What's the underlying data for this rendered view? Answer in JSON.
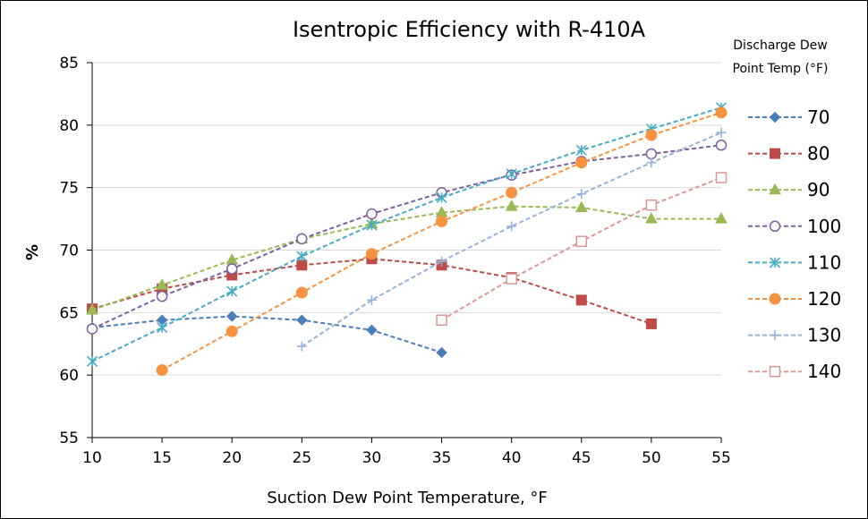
{
  "chart_data": {
    "type": "line",
    "title": "Isentropic Efficiency with R-410A",
    "xlabel": "Suction Dew Point Temperature, °F",
    "ylabel": "%",
    "xlim": [
      10,
      55
    ],
    "ylim": [
      55,
      85
    ],
    "xticks": [
      10,
      15,
      20,
      25,
      30,
      35,
      40,
      45,
      50,
      55
    ],
    "yticks": [
      55,
      60,
      65,
      70,
      75,
      80,
      85
    ],
    "grid": "horizontal",
    "legend_title": "Discharge Dew Point Temp (°F)",
    "legend_title_lines": [
      "Discharge Dew",
      "Point Temp (°F)"
    ],
    "legend_position": "right",
    "series": [
      {
        "name": "70",
        "color": "#4a7ebb",
        "marker": "diamond",
        "x": [
          10,
          15,
          20,
          25,
          30,
          35
        ],
        "y": [
          63.8,
          64.4,
          64.7,
          64.4,
          63.6,
          61.8
        ]
      },
      {
        "name": "80",
        "color": "#be4b48",
        "marker": "square",
        "x": [
          10,
          15,
          20,
          25,
          30,
          35,
          40,
          45,
          50
        ],
        "y": [
          65.3,
          66.9,
          68.0,
          68.8,
          69.3,
          68.8,
          67.8,
          66.0,
          64.1
        ]
      },
      {
        "name": "90",
        "color": "#98b954",
        "marker": "triangle",
        "x": [
          10,
          15,
          20,
          25,
          30,
          35,
          40,
          45,
          50,
          55
        ],
        "y": [
          65.2,
          67.2,
          69.2,
          70.9,
          72.1,
          73.0,
          73.5,
          73.4,
          72.5,
          72.5
        ]
      },
      {
        "name": "100",
        "color": "#7d60a0",
        "marker": "circle-open",
        "x": [
          10,
          15,
          20,
          25,
          30,
          35,
          40,
          45,
          50,
          55
        ],
        "y": [
          63.7,
          66.3,
          68.5,
          70.9,
          72.9,
          74.6,
          76.0,
          77.1,
          77.7,
          78.4
        ]
      },
      {
        "name": "110",
        "color": "#46aac5",
        "marker": "star",
        "x": [
          10,
          15,
          20,
          25,
          30,
          35,
          40,
          45,
          50,
          55
        ],
        "y": [
          61.1,
          63.8,
          66.7,
          69.5,
          72.0,
          74.2,
          76.1,
          78.0,
          79.7,
          81.4
        ]
      },
      {
        "name": "120",
        "color": "#f69240",
        "marker": "circle-filled",
        "x": [
          15,
          20,
          25,
          30,
          35,
          40,
          45,
          50,
          55
        ],
        "y": [
          60.4,
          63.5,
          66.6,
          69.7,
          72.3,
          74.6,
          77.0,
          79.2,
          81.0
        ]
      },
      {
        "name": "130",
        "color": "#95b3d7",
        "marker": "plus",
        "x": [
          25,
          30,
          35,
          40,
          45,
          50,
          55
        ],
        "y": [
          62.3,
          66.0,
          69.1,
          71.9,
          74.5,
          77.0,
          79.4
        ]
      },
      {
        "name": "140",
        "color": "#d99795",
        "marker": "square-open",
        "x": [
          35,
          40,
          45,
          50,
          55
        ],
        "y": [
          64.4,
          67.7,
          70.7,
          73.6,
          75.8
        ]
      }
    ]
  }
}
